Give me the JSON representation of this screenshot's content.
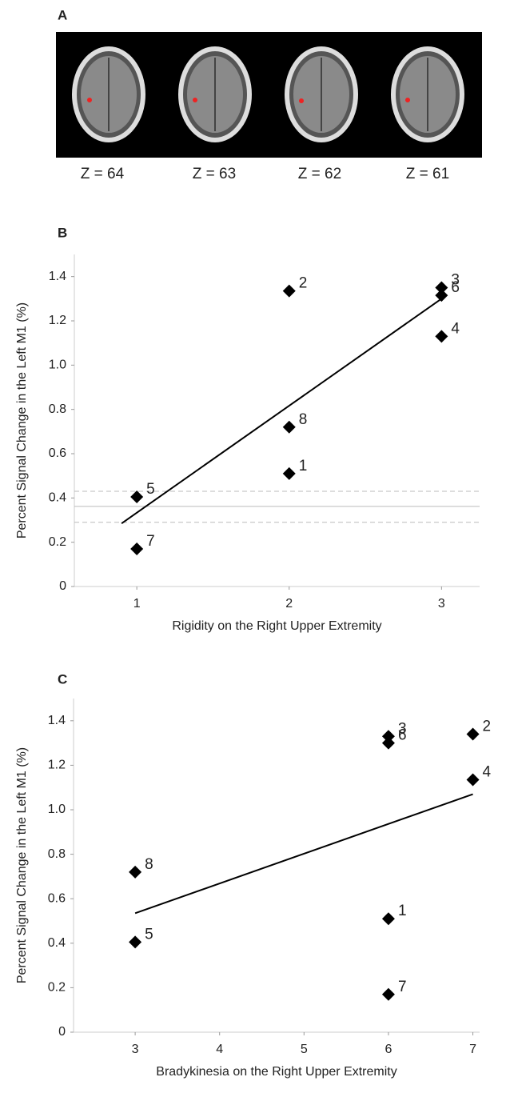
{
  "figure": {
    "panel_a": {
      "label": "A",
      "slices": [
        "Z = 64",
        "Z = 63",
        "Z = 62",
        "Z = 61"
      ]
    }
  },
  "chart_data": [
    {
      "type": "scatter",
      "panel_label": "B",
      "x_label": "Rigidity on the Right Upper Extremity",
      "y_label": "Percent Signal Change in the Left M1 (%)",
      "x": [
        2,
        2,
        3,
        3,
        1,
        3,
        1,
        2
      ],
      "values": [
        0.51,
        1.335,
        1.35,
        1.13,
        0.405,
        1.315,
        0.17,
        0.72
      ],
      "point_labels": [
        "1",
        "2",
        "3",
        "4",
        "5",
        "6",
        "7",
        "8"
      ],
      "color": "#000000",
      "fit_line": {
        "x": [
          0.9,
          3
        ],
        "y": [
          0.285,
          1.3
        ]
      },
      "reference_lines": [
        {
          "y": 0.362,
          "style": "solid"
        },
        {
          "y": 0.43,
          "style": "dashed"
        },
        {
          "y": 0.29,
          "style": "dashed"
        }
      ],
      "xlim": [
        0.59,
        3.25
      ],
      "xticks": [
        1,
        2,
        3
      ],
      "ylim": [
        0,
        1.5
      ],
      "yticks": [
        0,
        0.2,
        0.4,
        0.6,
        0.8,
        {
          "value": 1,
          "label": "1.0"
        },
        1.2,
        1.4
      ]
    },
    {
      "type": "scatter",
      "panel_label": "C",
      "x_label": "Bradykinesia on the Right Upper Extremity",
      "y_label": "Percent Signal Change in the Left M1 (%)",
      "x": [
        6,
        7,
        6,
        7,
        3,
        6,
        6,
        3
      ],
      "values": [
        0.51,
        1.34,
        1.33,
        1.135,
        0.405,
        1.3,
        0.17,
        0.72
      ],
      "point_labels": [
        "1",
        "2",
        "3",
        "4",
        "5",
        "6",
        "7",
        "8"
      ],
      "color": "#000000",
      "fit_line": {
        "x": [
          3,
          7
        ],
        "y": [
          0.535,
          1.07
        ]
      },
      "xlim": [
        2.27,
        7.08
      ],
      "xticks": [
        3,
        4,
        5,
        6,
        7
      ],
      "ylim": [
        0,
        1.5
      ],
      "yticks": [
        0,
        0.2,
        0.4,
        0.6,
        0.8,
        {
          "value": 1,
          "label": "1.0"
        },
        1.2,
        1.4
      ]
    }
  ]
}
